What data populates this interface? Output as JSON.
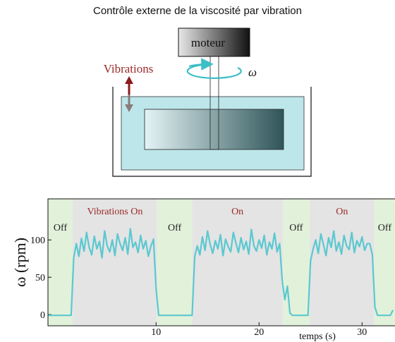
{
  "diagram": {
    "title": "Contrôle externe de la viscosité par vibration",
    "motor_label": "moteur",
    "omega_label": "ω",
    "vibrations_label": "Vibrations"
  },
  "chart_data": {
    "type": "line",
    "ylabel": "ω (rpm)",
    "xlabel": "temps (s)",
    "color": "#5bc8d0",
    "xlim": [
      -0.5,
      33.2
    ],
    "ylim": [
      -15,
      155
    ],
    "xticks": [
      10,
      20,
      30
    ],
    "yticks": [
      0,
      50,
      100
    ],
    "regions": [
      {
        "start": -0.5,
        "end": 1.9,
        "label": "Off",
        "color": "#e2f1da",
        "label_color": "#222222"
      },
      {
        "start": 1.9,
        "end": 10.1,
        "label": "Vibrations On",
        "color": "#e4e4e4",
        "label_color": "#9a2a2a"
      },
      {
        "start": 10.1,
        "end": 13.5,
        "label": "Off",
        "color": "#e2f1da",
        "label_color": "#222222"
      },
      {
        "start": 13.5,
        "end": 22.3,
        "label": "On",
        "color": "#e4e4e4",
        "label_color": "#9a2a2a"
      },
      {
        "start": 22.3,
        "end": 24.9,
        "label": "Off",
        "color": "#e2f1da",
        "label_color": "#222222"
      },
      {
        "start": 24.9,
        "end": 31.2,
        "label": "On",
        "color": "#e4e4e4",
        "label_color": "#9a2a2a"
      },
      {
        "start": 31.2,
        "end": 33.2,
        "label": "Off",
        "color": "#e2f1da",
        "label_color": "#222222"
      }
    ],
    "x": [
      -0.5,
      -0.25,
      0,
      0.25,
      0.5,
      0.75,
      1,
      1.25,
      1.5,
      1.75,
      2,
      2.25,
      2.5,
      2.75,
      3,
      3.25,
      3.5,
      3.75,
      4,
      4.25,
      4.5,
      4.75,
      5,
      5.25,
      5.5,
      5.75,
      6,
      6.25,
      6.5,
      6.75,
      7,
      7.25,
      7.5,
      7.75,
      8,
      8.25,
      8.5,
      8.75,
      9,
      9.25,
      9.5,
      9.75,
      10,
      10.25,
      10.5,
      10.75,
      11,
      11.25,
      11.5,
      11.75,
      12,
      12.25,
      12.5,
      12.75,
      13,
      13.25,
      13.5,
      13.75,
      14,
      14.25,
      14.5,
      14.75,
      15,
      15.25,
      15.5,
      15.75,
      16,
      16.25,
      16.5,
      16.75,
      17,
      17.25,
      17.5,
      17.75,
      18,
      18.25,
      18.5,
      18.75,
      19,
      19.25,
      19.5,
      19.75,
      20,
      20.25,
      20.5,
      20.75,
      21,
      21.25,
      21.5,
      21.75,
      22,
      22.25,
      22.5,
      22.75,
      23,
      23.25,
      23.5,
      23.75,
      24,
      24.25,
      24.5,
      24.75,
      25,
      25.25,
      25.5,
      25.75,
      26,
      26.25,
      26.5,
      26.75,
      27,
      27.25,
      27.5,
      27.75,
      28,
      28.25,
      28.5,
      28.75,
      29,
      29.25,
      29.5,
      29.75,
      30,
      30.25,
      30.5,
      30.75,
      31,
      31.25,
      31.5,
      31.75,
      32,
      32.25,
      32.5,
      32.75,
      33
    ],
    "values": [
      -1,
      -1,
      -1,
      -1,
      -1,
      -1,
      -1,
      -1,
      -1,
      -1,
      76,
      95,
      78,
      102,
      85,
      110,
      90,
      80,
      105,
      88,
      98,
      76,
      112,
      92,
      84,
      100,
      79,
      108,
      95,
      86,
      103,
      81,
      115,
      90,
      97,
      83,
      106,
      88,
      99,
      78,
      92,
      101,
      35,
      -1,
      -1,
      -1,
      -1,
      -1,
      -1,
      -1,
      -1,
      -1,
      -1,
      -1,
      -1,
      -1,
      -1,
      78,
      92,
      80,
      104,
      86,
      112,
      94,
      82,
      99,
      88,
      107,
      79,
      101,
      91,
      84,
      110,
      96,
      83,
      103,
      87,
      98,
      81,
      114,
      92,
      85,
      100,
      89,
      106,
      80,
      97,
      88,
      109,
      84,
      95,
      45,
      20,
      38,
      2,
      -1,
      -1,
      -1,
      -1,
      -1,
      -1,
      -1,
      72,
      88,
      100,
      82,
      108,
      94,
      79,
      103,
      90,
      112,
      85,
      97,
      81,
      106,
      92,
      87,
      110,
      83,
      99,
      91,
      104,
      86,
      95,
      95,
      80,
      10,
      -1,
      -1,
      -1,
      -1,
      -1,
      -1,
      6
    ]
  }
}
